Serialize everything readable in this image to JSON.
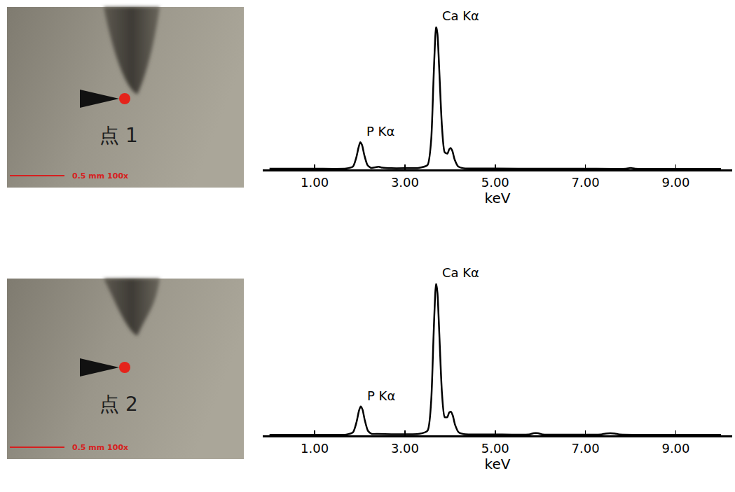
{
  "chart_data": [
    {
      "type": "line",
      "xlabel": "keV",
      "color": "#000000",
      "grid": false,
      "tick_labels": "x",
      "xlim": [
        -0.15,
        10.25
      ],
      "ylim": [
        0,
        100
      ],
      "xticks": [
        {
          "value": 1,
          "label": "1.00"
        },
        {
          "value": 3,
          "label": "3.00"
        },
        {
          "value": 5,
          "label": "5.00"
        },
        {
          "value": 7,
          "label": "7.00"
        },
        {
          "value": 9,
          "label": "9.00"
        }
      ],
      "x": [
        0,
        1.0,
        1.7,
        1.85,
        1.92,
        1.97,
        2.01,
        2.05,
        2.1,
        2.17,
        2.25,
        2.35,
        2.42,
        2.5,
        2.7,
        3.0,
        3.3,
        3.5,
        3.58,
        3.63,
        3.67,
        3.69,
        3.72,
        3.76,
        3.82,
        3.88,
        3.94,
        3.98,
        4.01,
        4.05,
        4.1,
        4.18,
        4.3,
        5.0,
        6.0,
        7.0,
        7.9,
        8.0,
        8.1,
        9.0,
        10.0
      ],
      "values": [
        0.5,
        0.5,
        0.6,
        2,
        8,
        15,
        19,
        17,
        10,
        3,
        1,
        1.5,
        1.8,
        1.2,
        0.8,
        0.8,
        1,
        3,
        20,
        60,
        92,
        100,
        95,
        70,
        30,
        12,
        11,
        14,
        15,
        13,
        7,
        2,
        0.8,
        0.6,
        0.5,
        0.5,
        0.5,
        1.0,
        0.5,
        0.4,
        0.4
      ],
      "annotations": [
        {
          "text": "P Kα",
          "x": 2.01,
          "y": 19
        },
        {
          "text": "Ca Kα",
          "x": 3.69,
          "y": 100
        }
      ]
    },
    {
      "type": "line",
      "xlabel": "keV",
      "color": "#000000",
      "grid": false,
      "tick_labels": "x",
      "xlim": [
        -0.15,
        10.25
      ],
      "ylim": [
        0,
        100
      ],
      "xticks": [
        {
          "value": 1,
          "label": "1.00"
        },
        {
          "value": 3,
          "label": "3.00"
        },
        {
          "value": 5,
          "label": "5.00"
        },
        {
          "value": 7,
          "label": "7.00"
        },
        {
          "value": 9,
          "label": "9.00"
        }
      ],
      "x": [
        0,
        1.0,
        1.7,
        1.85,
        1.93,
        1.98,
        2.02,
        2.06,
        2.11,
        2.18,
        2.26,
        2.4,
        2.7,
        3.0,
        3.3,
        3.5,
        3.58,
        3.63,
        3.67,
        3.69,
        3.72,
        3.76,
        3.82,
        3.88,
        3.94,
        3.98,
        4.02,
        4.06,
        4.11,
        4.19,
        4.3,
        5.0,
        5.75,
        5.85,
        5.95,
        6.05,
        7.0,
        7.35,
        7.45,
        7.65,
        7.75,
        9.0,
        10.0
      ],
      "values": [
        0.4,
        0.4,
        0.5,
        2,
        9,
        16,
        19,
        17,
        10,
        3,
        1,
        0.9,
        0.7,
        0.7,
        0.9,
        3,
        22,
        62,
        93,
        100,
        94,
        68,
        28,
        12,
        12,
        15,
        15.5,
        13,
        7,
        2,
        0.8,
        0.6,
        0.6,
        1.4,
        1.4,
        0.6,
        0.5,
        0.6,
        1.2,
        1.2,
        0.6,
        0.4,
        0.4
      ],
      "annotations": [
        {
          "text": "P Kα",
          "x": 2.02,
          "y": 19
        },
        {
          "text": "Ca Kα",
          "x": 3.69,
          "y": 100
        }
      ]
    }
  ],
  "images": [
    {
      "label": "点 1",
      "scale_bar": "0.5 mm 100x"
    },
    {
      "label": "点 2",
      "scale_bar": "0.5 mm 100x"
    }
  ]
}
